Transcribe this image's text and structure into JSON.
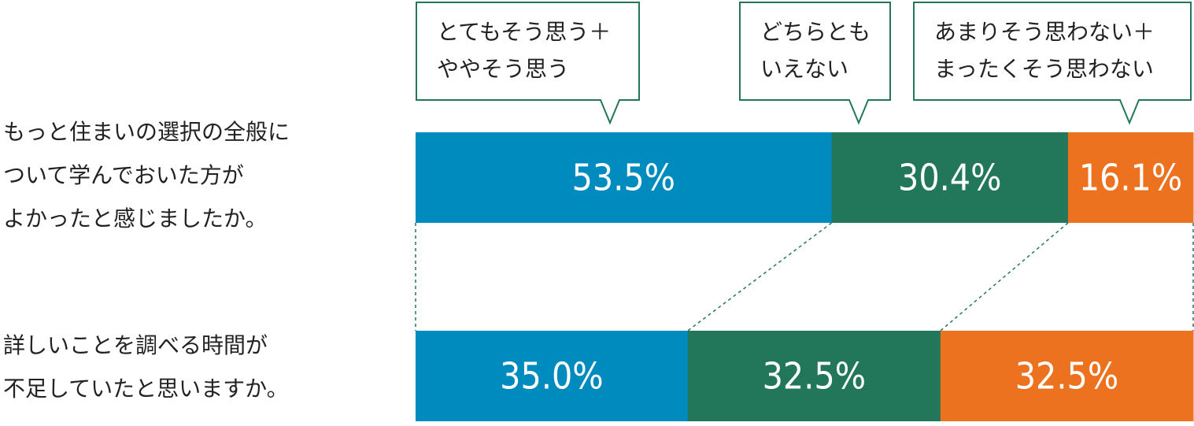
{
  "chart_data": {
    "type": "bar",
    "orientation": "horizontal",
    "stacked": true,
    "percent": true,
    "categories": [
      "もっと住まいの選択の全般について学んでおいた方がよかったと感じましたか。",
      "詳しいことを調べる時間が不足していたと思いますか。"
    ],
    "category_lines": [
      [
        "もっと住まいの選択の全般に",
        "ついて学んでおいた方が",
        "よかったと感じましたか。"
      ],
      [
        "詳しいことを調べる時間が",
        "不足していたと思いますか。"
      ]
    ],
    "series": [
      {
        "name": "とてもそう思う＋ややそう思う",
        "name_lines": [
          "とてもそう思う＋",
          "ややそう思う"
        ],
        "color": "#008bbf",
        "values": [
          53.5,
          35.0
        ],
        "labels": [
          "53.5%",
          "35.0%"
        ]
      },
      {
        "name": "どちらともいえない",
        "name_lines": [
          "どちらとも",
          "いえない"
        ],
        "color": "#22775a",
        "values": [
          30.4,
          32.5
        ],
        "labels": [
          "30.4%",
          "32.5%"
        ]
      },
      {
        "name": "あまりそう思わない＋まったくそう思わない",
        "name_lines": [
          "あまりそう思わない＋",
          "まったくそう思わない"
        ],
        "color": "#ed7220",
        "values": [
          16.1,
          32.5
        ],
        "labels": [
          "16.1%",
          "32.5%"
        ]
      }
    ],
    "xlim": [
      0,
      100
    ],
    "legend_position": "top",
    "connector_color": "#22775a"
  }
}
